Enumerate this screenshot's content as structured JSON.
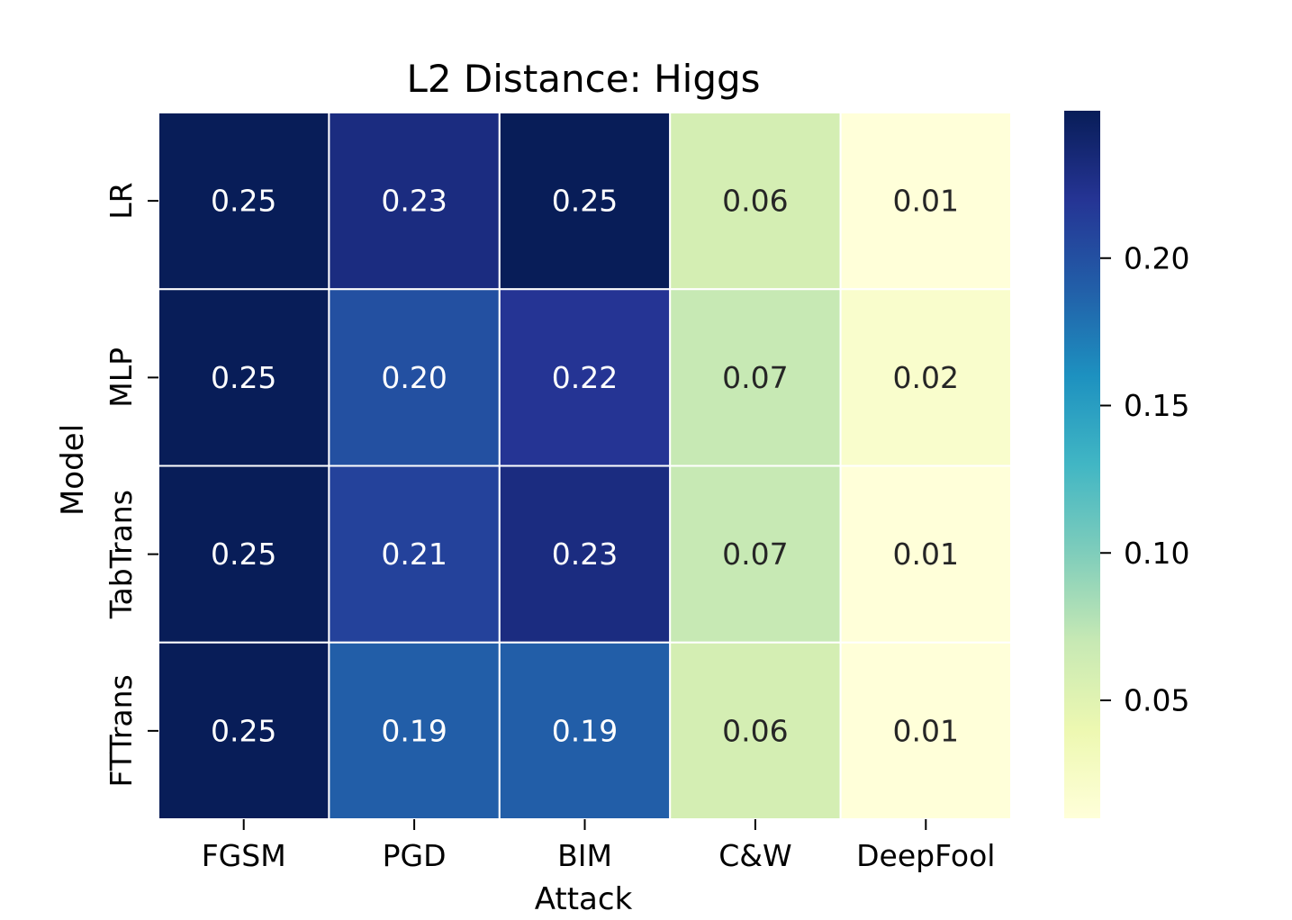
{
  "chart_data": {
    "type": "heatmap",
    "title": "L2 Distance: Higgs",
    "xlabel": "Attack",
    "ylabel": "Model",
    "x_categories": [
      "FGSM",
      "PGD",
      "BIM",
      "C&W",
      "DeepFool"
    ],
    "y_categories": [
      "LR",
      "MLP",
      "TabTrans",
      "FTTrans"
    ],
    "values": [
      [
        0.25,
        0.23,
        0.25,
        0.06,
        0.01
      ],
      [
        0.25,
        0.2,
        0.22,
        0.07,
        0.02
      ],
      [
        0.25,
        0.21,
        0.23,
        0.07,
        0.01
      ],
      [
        0.25,
        0.19,
        0.19,
        0.06,
        0.01
      ]
    ],
    "value_labels": [
      [
        "0.25",
        "0.23",
        "0.25",
        "0.06",
        "0.01"
      ],
      [
        "0.25",
        "0.20",
        "0.22",
        "0.07",
        "0.02"
      ],
      [
        "0.25",
        "0.21",
        "0.23",
        "0.07",
        "0.01"
      ],
      [
        "0.25",
        "0.19",
        "0.19",
        "0.06",
        "0.01"
      ]
    ],
    "colormap": "YlGnBu",
    "colormap_stops": [
      "#ffffd9",
      "#edf8b1",
      "#c7e9b4",
      "#7fcdbb",
      "#41b6c4",
      "#1d91c0",
      "#225ea8",
      "#253494",
      "#081d58"
    ],
    "colorbar": {
      "range": [
        0.01,
        0.25
      ],
      "ticks": [
        0.05,
        0.1,
        0.15,
        0.2
      ],
      "tick_labels": [
        "0.05",
        "0.10",
        "0.15",
        "0.20"
      ]
    },
    "grid": false
  }
}
